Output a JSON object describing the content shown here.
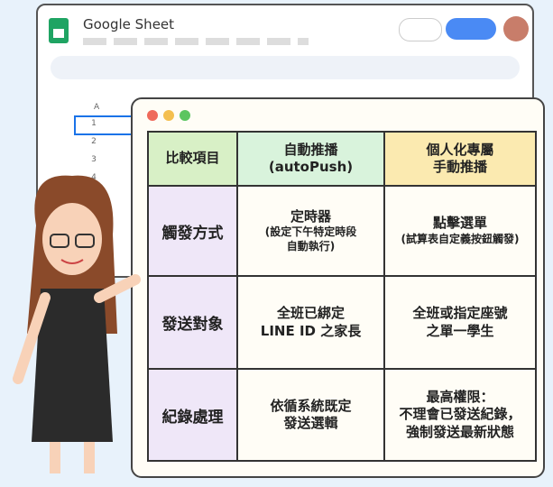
{
  "window": {
    "title": "Google Sheet",
    "column": "A",
    "rows": [
      "1",
      "2",
      "3",
      "4"
    ]
  },
  "table": {
    "header": [
      [
        "比較項目"
      ],
      [
        "自動推播",
        "(autoPush)"
      ],
      [
        "個人化專屬",
        "手動推播"
      ]
    ],
    "rows": [
      {
        "label": "觸發方式",
        "auto": [
          "定時器"
        ],
        "auto_note": [
          "(設定下午特定時段",
          "自動執行)"
        ],
        "manual": [
          "點擊選單"
        ],
        "manual_note": [
          "(試算表自定義按鈕觸發)"
        ]
      },
      {
        "label": "發送對象",
        "auto": [
          "全班已綁定",
          "LINE ID 之家長"
        ],
        "auto_note": [],
        "manual": [
          "全班或指定座號",
          "之單一學生"
        ],
        "manual_note": []
      },
      {
        "label": "紀錄處理",
        "auto": [
          "依循系統既定",
          "發送選輯"
        ],
        "auto_note": [],
        "manual": [
          "最高權限：",
          "不理會已發送紀錄，",
          "強制發送最新狀態"
        ],
        "manual_note": []
      }
    ]
  }
}
